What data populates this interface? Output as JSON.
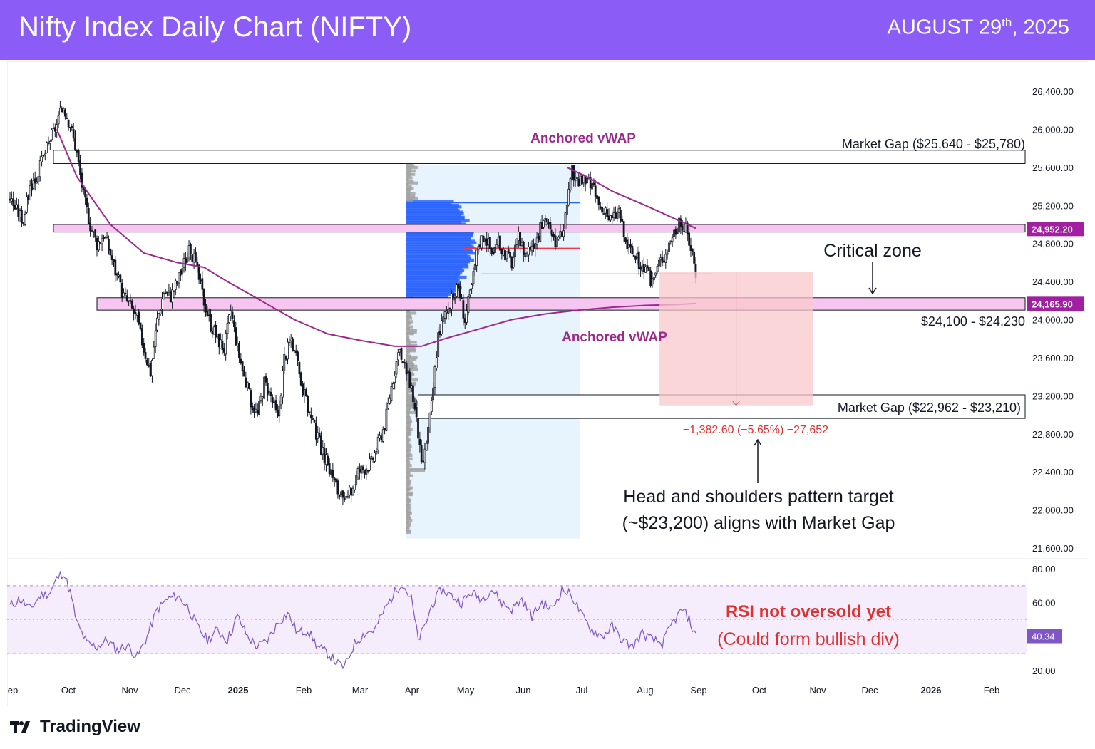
{
  "header": {
    "title": "Nifty Index Daily Chart (NIFTY)",
    "date_main": "AUGUST 29",
    "date_sup": "th",
    "date_year": ", 2025",
    "bg_color": "#8b5cf6"
  },
  "chart_data": {
    "type": "candlestick",
    "title": "Nifty Index Daily Chart (NIFTY)",
    "price_axis": {
      "ylim": [
        21500,
        26600
      ],
      "ticks": [
        "26,400.00",
        "26,000.00",
        "25,600.00",
        "25,200.00",
        "24,800.00",
        "24,400.00",
        "24,000.00",
        "23,600.00",
        "23,200.00",
        "22,800.00",
        "22,400.00",
        "22,000.00",
        "21,600.00"
      ],
      "tick_values": [
        26400,
        26000,
        25600,
        25200,
        24800,
        24400,
        24000,
        23600,
        23200,
        22800,
        22400,
        22000,
        21600
      ]
    },
    "price_labels": [
      {
        "value": 24952.2,
        "text": "24,952.20",
        "color": "#a020a0"
      },
      {
        "value": 24165.9,
        "text": "24,165.90",
        "color": "#a020a0"
      }
    ],
    "time_axis": {
      "ticks": [
        "ep",
        "Oct",
        "Nov",
        "Dec",
        "2025",
        "Feb",
        "Mar",
        "Apr",
        "May",
        "Jun",
        "Jul",
        "Aug",
        "Sep",
        "Oct",
        "Nov",
        "Dec",
        "2026",
        "Feb"
      ],
      "bold": [
        "2025",
        "2026"
      ]
    },
    "price_path": {
      "note": "approximate daily close path (date index, close)",
      "points": [
        [
          0,
          25280
        ],
        [
          4,
          25150
        ],
        [
          8,
          25050
        ],
        [
          12,
          25400
        ],
        [
          16,
          25500
        ],
        [
          20,
          25700
        ],
        [
          24,
          25900
        ],
        [
          28,
          26050
        ],
        [
          32,
          26250
        ],
        [
          36,
          26050
        ],
        [
          40,
          25750
        ],
        [
          44,
          25300
        ],
        [
          48,
          25000
        ],
        [
          52,
          24800
        ],
        [
          56,
          24900
        ],
        [
          60,
          24700
        ],
        [
          64,
          24450
        ],
        [
          68,
          24250
        ],
        [
          72,
          24150
        ],
        [
          76,
          24000
        ],
        [
          80,
          23700
        ],
        [
          84,
          23450
        ],
        [
          88,
          24000
        ],
        [
          92,
          24300
        ],
        [
          96,
          24250
        ],
        [
          100,
          24400
        ],
        [
          104,
          24600
        ],
        [
          108,
          24750
        ],
        [
          112,
          24500
        ],
        [
          116,
          24200
        ],
        [
          120,
          23950
        ],
        [
          124,
          23800
        ],
        [
          128,
          23700
        ],
        [
          132,
          24100
        ],
        [
          136,
          23700
        ],
        [
          140,
          23400
        ],
        [
          144,
          23150
        ],
        [
          148,
          23000
        ],
        [
          152,
          23350
        ],
        [
          156,
          23200
        ],
        [
          160,
          22950
        ],
        [
          164,
          23600
        ],
        [
          168,
          23800
        ],
        [
          172,
          23500
        ],
        [
          176,
          23200
        ],
        [
          180,
          22950
        ],
        [
          184,
          22750
        ],
        [
          188,
          22550
        ],
        [
          192,
          22400
        ],
        [
          196,
          22200
        ],
        [
          200,
          22050
        ],
        [
          204,
          22200
        ],
        [
          208,
          22400
        ],
        [
          212,
          22450
        ],
        [
          216,
          22500
        ],
        [
          220,
          22700
        ],
        [
          224,
          22900
        ],
        [
          228,
          23300
        ],
        [
          232,
          23650
        ],
        [
          236,
          23500
        ],
        [
          240,
          23300
        ],
        [
          244,
          22800
        ],
        [
          246,
          22450
        ],
        [
          248,
          22600
        ],
        [
          252,
          23100
        ],
        [
          256,
          23850
        ],
        [
          260,
          24050
        ],
        [
          264,
          24200
        ],
        [
          268,
          24350
        ],
        [
          272,
          24000
        ],
        [
          276,
          24350
        ],
        [
          280,
          24800
        ],
        [
          284,
          24900
        ],
        [
          288,
          24700
        ],
        [
          292,
          24800
        ],
        [
          296,
          24700
        ],
        [
          300,
          24600
        ],
        [
          304,
          24850
        ],
        [
          308,
          24700
        ],
        [
          312,
          24800
        ],
        [
          316,
          24900
        ],
        [
          320,
          25100
        ],
        [
          324,
          24850
        ],
        [
          328,
          24800
        ],
        [
          332,
          25050
        ],
        [
          336,
          25550
        ],
        [
          340,
          25450
        ],
        [
          344,
          25450
        ],
        [
          348,
          25400
        ],
        [
          352,
          25200
        ],
        [
          356,
          25100
        ],
        [
          360,
          25050
        ],
        [
          364,
          25150
        ],
        [
          368,
          24800
        ],
        [
          372,
          24700
        ],
        [
          376,
          24600
        ],
        [
          380,
          24500
        ],
        [
          384,
          24400
        ],
        [
          388,
          24600
        ],
        [
          392,
          24700
        ],
        [
          396,
          24900
        ],
        [
          400,
          25000
        ],
        [
          404,
          24950
        ],
        [
          408,
          24700
        ],
        [
          410,
          24500
        ]
      ]
    },
    "volume_profile": {
      "poc_price": 24750,
      "value_area_high": 25230,
      "value_area_low": 24220
    },
    "zones": [
      {
        "name": "Market Gap",
        "low": 25640,
        "high": 25780,
        "label": "Market Gap ($25,640 - $25,780)"
      },
      {
        "name": "Resistance zone",
        "low": 24920,
        "high": 25000
      },
      {
        "name": "Support zone",
        "low": 24100,
        "high": 24230,
        "label": "$24,100 - $24,230"
      },
      {
        "name": "Market Gap",
        "low": 22962,
        "high": 23210,
        "label": "Market Gap ($22,962 - $23,210)"
      }
    ],
    "measure": {
      "from": 24500,
      "to": 23100,
      "label": "−1,382.60 (−5.65%) −27,652"
    },
    "rsi": {
      "ylim": [
        10,
        90
      ],
      "ticks": [
        "80.00",
        "60.00",
        "20.00"
      ],
      "tick_values": [
        80,
        60,
        20
      ],
      "band": [
        30,
        70
      ],
      "current_text": "40.34",
      "current": 40.34,
      "points": [
        [
          0,
          58
        ],
        [
          6,
          62
        ],
        [
          12,
          56
        ],
        [
          18,
          64
        ],
        [
          24,
          66
        ],
        [
          28,
          74
        ],
        [
          32,
          78
        ],
        [
          36,
          66
        ],
        [
          40,
          48
        ],
        [
          46,
          36
        ],
        [
          52,
          34
        ],
        [
          58,
          38
        ],
        [
          64,
          32
        ],
        [
          70,
          35
        ],
        [
          76,
          28
        ],
        [
          82,
          40
        ],
        [
          88,
          56
        ],
        [
          94,
          62
        ],
        [
          100,
          64
        ],
        [
          106,
          58
        ],
        [
          112,
          46
        ],
        [
          118,
          38
        ],
        [
          124,
          44
        ],
        [
          130,
          38
        ],
        [
          136,
          52
        ],
        [
          142,
          40
        ],
        [
          148,
          34
        ],
        [
          154,
          38
        ],
        [
          160,
          48
        ],
        [
          166,
          54
        ],
        [
          172,
          42
        ],
        [
          178,
          44
        ],
        [
          184,
          34
        ],
        [
          190,
          30
        ],
        [
          196,
          24
        ],
        [
          200,
          22
        ],
        [
          206,
          36
        ],
        [
          212,
          42
        ],
        [
          218,
          44
        ],
        [
          224,
          56
        ],
        [
          230,
          66
        ],
        [
          234,
          72
        ],
        [
          240,
          62
        ],
        [
          244,
          38
        ],
        [
          248,
          46
        ],
        [
          252,
          58
        ],
        [
          258,
          68
        ],
        [
          264,
          64
        ],
        [
          270,
          60
        ],
        [
          276,
          66
        ],
        [
          282,
          62
        ],
        [
          288,
          68
        ],
        [
          294,
          60
        ],
        [
          300,
          56
        ],
        [
          306,
          62
        ],
        [
          312,
          52
        ],
        [
          318,
          60
        ],
        [
          324,
          56
        ],
        [
          330,
          68
        ],
        [
          336,
          64
        ],
        [
          342,
          52
        ],
        [
          348,
          44
        ],
        [
          354,
          40
        ],
        [
          360,
          46
        ],
        [
          366,
          38
        ],
        [
          372,
          34
        ],
        [
          378,
          42
        ],
        [
          384,
          38
        ],
        [
          390,
          36
        ],
        [
          396,
          48
        ],
        [
          402,
          56
        ],
        [
          406,
          50
        ],
        [
          410,
          40
        ]
      ]
    },
    "annotations": [
      {
        "text": "Anchored vWAP",
        "color": "#9c2a8c"
      },
      {
        "text": "Anchored vWAP",
        "color": "#9c2a8c"
      },
      {
        "text": "Critical zone",
        "color": "#131722"
      },
      {
        "text": "Head and shoulders pattern target",
        "color": "#131722"
      },
      {
        "text": "(~$23,200) aligns with Market Gap",
        "color": "#131722"
      },
      {
        "text": "RSI not oversold yet",
        "color": "#e03131"
      },
      {
        "text": "(Could form bullish div)",
        "color": "#e03131"
      }
    ],
    "colors": {
      "vwap": "#9c2a8c",
      "zone_fill": "#f7c6f0",
      "profile_blue": "#2962ff",
      "profile_grey": "#9e9e9e",
      "profile_bg": "#e8f4fd",
      "target_fill": "#f8c8cc",
      "rsi_line": "#7e57c2",
      "rsi_band": "#f3e8fb",
      "measure_text": "#e03131"
    }
  },
  "footer": {
    "brand": "TradingView"
  }
}
